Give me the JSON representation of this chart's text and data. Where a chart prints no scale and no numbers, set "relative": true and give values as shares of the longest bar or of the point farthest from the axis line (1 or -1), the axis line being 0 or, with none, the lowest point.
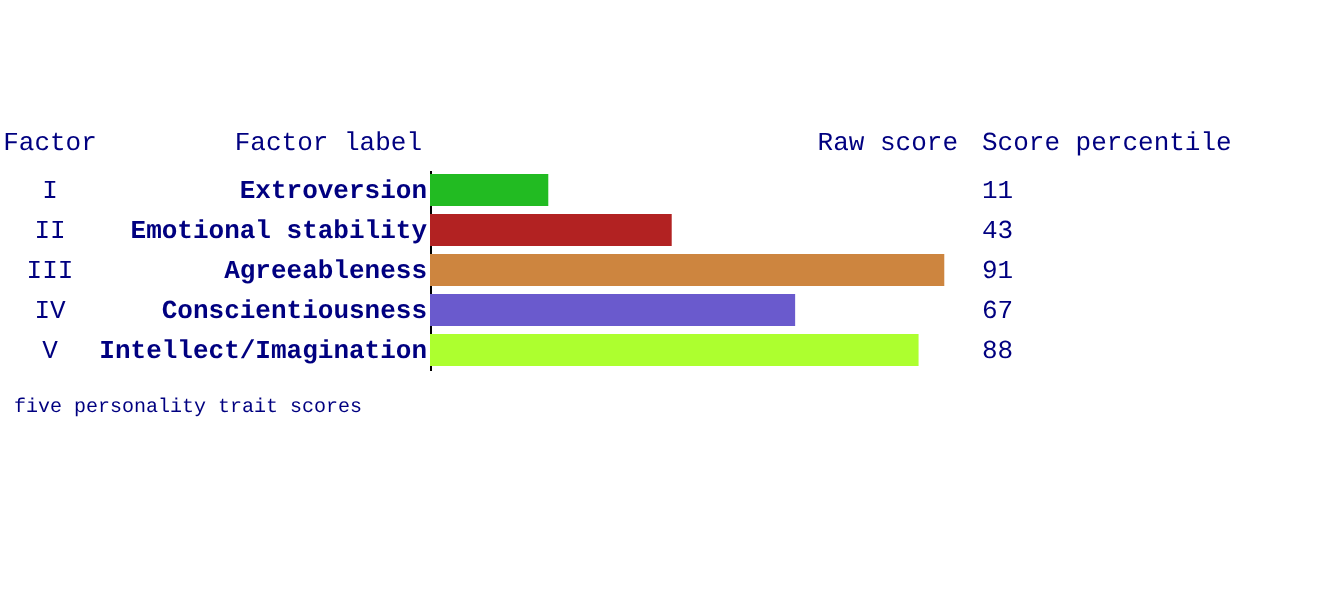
{
  "chart_data": {
    "type": "bar",
    "orientation": "horizontal",
    "relative": true,
    "ylabel": "Factor label",
    "xlabel": "Raw score",
    "categories": [
      "Extroversion",
      "Emotional stability",
      "Agreeableness",
      "Conscientiousness",
      "Intellect/Imagination"
    ],
    "values": [
      0.23,
      0.47,
      1,
      0.71,
      0.95
    ],
    "colors": [
      "#22bb22",
      "#b22222",
      "#cd853f",
      "#6a5acd",
      "#adff2f"
    ],
    "annotations": [
      "Factor",
      "Score percentile",
      "five personality trait scores",
      "I",
      "II",
      "III",
      "IV",
      "V",
      "11",
      "43",
      "91",
      "67",
      "88"
    ],
    "grid": false
  }
}
